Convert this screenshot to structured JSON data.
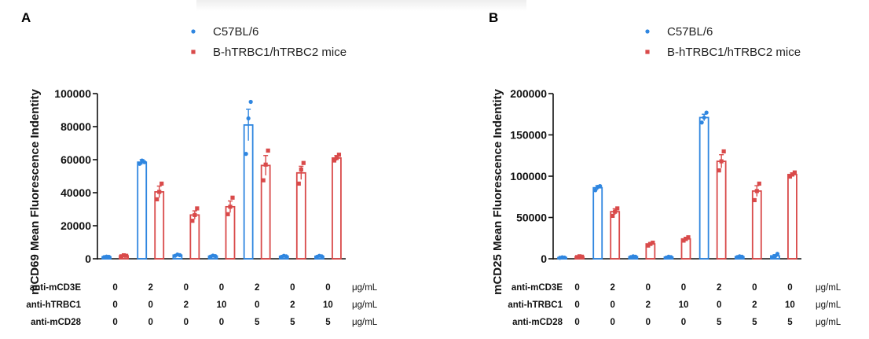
{
  "colors": {
    "series1": "#2f86e0",
    "series2": "#d94a4a",
    "axis": "#111111"
  },
  "chart_data": [
    {
      "type": "bar",
      "panel": "A",
      "ylabel": "mCD69 Mean Fluorescence Indentity",
      "ylim": [
        0,
        100000
      ],
      "yticks": [
        "0",
        "20000",
        "40000",
        "60000",
        "80000",
        "100000"
      ],
      "ytick_values": [
        0,
        20000,
        40000,
        60000,
        80000,
        100000
      ],
      "legend_position": "top-center",
      "series": [
        {
          "name": "C57BL/6",
          "marker": "circle",
          "values": [
            1200,
            58500,
            2200,
            1600,
            81000,
            1500,
            1500
          ],
          "errors": [
            300,
            1500,
            400,
            300,
            9500,
            300,
            300
          ],
          "points": [
            [
              1000,
              1300,
              1200
            ],
            [
              57500,
              59500,
              58500
            ],
            [
              1800,
              2600,
              2200
            ],
            [
              1300,
              1900,
              1600
            ],
            [
              63500,
              85000,
              95000
            ],
            [
              1200,
              1800,
              1500
            ],
            [
              1200,
              1800,
              1500
            ]
          ]
        },
        {
          "name": "B-hTRBC1/hTRBC2 mice",
          "marker": "square",
          "values": [
            1800,
            40500,
            26500,
            31500,
            56500,
            52000,
            61000
          ],
          "errors": [
            300,
            3500,
            2500,
            3500,
            6000,
            4000,
            1500
          ],
          "points": [
            [
              1500,
              2100,
              1800
            ],
            [
              36000,
              40500,
              45500
            ],
            [
              23000,
              26500,
              30500
            ],
            [
              27000,
              31500,
              37000
            ],
            [
              47500,
              57000,
              65500
            ],
            [
              45500,
              54000,
              58000
            ],
            [
              59500,
              61000,
              63000
            ]
          ]
        }
      ],
      "conditions": [
        {
          "label": "anti-mCD3E",
          "values": [
            "0",
            "2",
            "0",
            "0",
            "2",
            "0",
            "0"
          ],
          "unit": "μg/mL"
        },
        {
          "label": "anti-hTRBC1",
          "values": [
            "0",
            "0",
            "2",
            "10",
            "0",
            "2",
            "10"
          ],
          "unit": "μg/mL"
        },
        {
          "label": "anti-mCD28",
          "values": [
            "0",
            "0",
            "0",
            "0",
            "5",
            "5",
            "5"
          ],
          "unit": "μg/mL"
        }
      ]
    },
    {
      "type": "bar",
      "panel": "B",
      "ylabel": "mCD25 Mean Fluorescence Indentity",
      "ylim": [
        0,
        200000
      ],
      "yticks": [
        "0",
        "50000",
        "100000",
        "150000",
        "200000"
      ],
      "ytick_values": [
        0,
        50000,
        100000,
        150000,
        200000
      ],
      "legend_position": "top-center",
      "series": [
        {
          "name": "C57BL/6",
          "marker": "circle",
          "values": [
            1500,
            86000,
            2500,
            2000,
            171000,
            2500,
            3500
          ],
          "errors": [
            400,
            2500,
            500,
            400,
            4000,
            500,
            1500
          ],
          "points": [
            [
              1200,
              1800,
              1500
            ],
            [
              83000,
              87000,
              88000
            ],
            [
              2000,
              3000,
              2500
            ],
            [
              1500,
              2500,
              2000
            ],
            [
              165000,
              171000,
              177000
            ],
            [
              2000,
              3000,
              2500
            ],
            [
              2000,
              3000,
              6000
            ]
          ]
        },
        {
          "name": "B-hTRBC1/hTRBC2 mice",
          "marker": "square",
          "values": [
            2500,
            57000,
            18000,
            24000,
            118000,
            82000,
            102000
          ],
          "errors": [
            400,
            3500,
            1500,
            2000,
            8000,
            6500,
            2000
          ],
          "points": [
            [
              2000,
              3000,
              2500
            ],
            [
              52000,
              57000,
              61000
            ],
            [
              16000,
              18000,
              19500
            ],
            [
              22000,
              24000,
              26000
            ],
            [
              107000,
              118000,
              130000
            ],
            [
              71000,
              82000,
              91000
            ],
            [
              99500,
              102000,
              104500
            ]
          ]
        }
      ],
      "conditions": [
        {
          "label": "anti-mCD3E",
          "values": [
            "0",
            "2",
            "0",
            "0",
            "2",
            "0",
            "0"
          ],
          "unit": "μg/mL"
        },
        {
          "label": "anti-hTRBC1",
          "values": [
            "0",
            "0",
            "2",
            "10",
            "0",
            "2",
            "10"
          ],
          "unit": "μg/mL"
        },
        {
          "label": "anti-mCD28",
          "values": [
            "0",
            "0",
            "0",
            "0",
            "5",
            "5",
            "5"
          ],
          "unit": "μg/mL"
        }
      ]
    }
  ]
}
